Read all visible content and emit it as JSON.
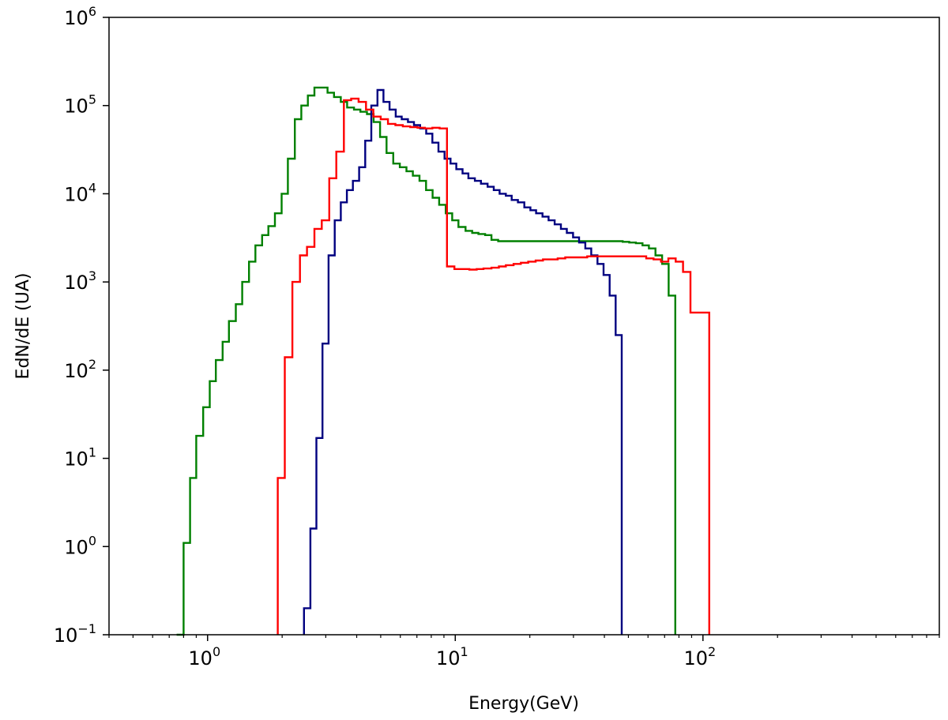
{
  "chart_data": {
    "type": "line",
    "xlabel": "Energy(GeV)",
    "ylabel": "EdN/dE (UA)",
    "xscale": "log",
    "yscale": "log",
    "xlim": [
      0.4,
      900
    ],
    "ylim": [
      0.1,
      1000000
    ],
    "grid": false,
    "x_ticks": [
      {
        "base": "10",
        "exp": "0",
        "value": 1
      },
      {
        "base": "10",
        "exp": "1",
        "value": 10
      },
      {
        "base": "10",
        "exp": "2",
        "value": 100
      }
    ],
    "y_ticks": [
      {
        "base": "10",
        "exp": "−1",
        "value": 0.1
      },
      {
        "base": "10",
        "exp": "0",
        "value": 1
      },
      {
        "base": "10",
        "exp": "1",
        "value": 10
      },
      {
        "base": "10",
        "exp": "2",
        "value": 100
      },
      {
        "base": "10",
        "exp": "3",
        "value": 1000
      },
      {
        "base": "10",
        "exp": "4",
        "value": 10000
      },
      {
        "base": "10",
        "exp": "5",
        "value": 100000
      },
      {
        "base": "10",
        "exp": "6",
        "value": 1000000
      }
    ],
    "series": [
      {
        "color": "#008000",
        "edges": [
          0.75,
          0.8,
          0.85,
          0.9,
          0.96,
          1.02,
          1.08,
          1.15,
          1.22,
          1.3,
          1.38,
          1.47,
          1.56,
          1.66,
          1.76,
          1.87,
          1.99,
          2.11,
          2.25,
          2.39,
          2.54,
          2.7,
          2.87,
          3.05,
          3.24,
          3.45,
          3.66,
          3.9,
          4.14,
          4.4,
          4.68,
          4.97,
          5.28,
          5.62,
          5.97,
          6.35,
          6.74,
          7.17,
          7.62,
          8.1,
          8.61,
          9.15,
          9.72,
          10.3,
          11.0,
          11.7,
          12.4,
          13.2,
          14.0,
          14.9,
          15.8,
          16.8,
          17.9,
          19.0,
          20.2,
          21.5,
          22.8,
          24.3,
          25.8,
          27.4,
          29.1,
          31.0,
          32.9,
          35.0,
          37.2,
          39.5,
          42.0,
          44.6,
          47.4,
          50.4,
          53.6,
          57.0,
          60.5,
          64.3,
          68.4,
          72.7,
          77.3
        ],
        "values": [
          0.1,
          1.1,
          6,
          18,
          38,
          75,
          130,
          210,
          360,
          560,
          1000,
          1700,
          2600,
          3400,
          4300,
          6000,
          10000,
          25000,
          70000,
          100000,
          130000,
          160000,
          160000,
          140000,
          125000,
          110000,
          95000,
          90000,
          85000,
          80000,
          65000,
          44000,
          29000,
          22000,
          20000,
          18000,
          16000,
          14000,
          11000,
          9000,
          7500,
          6000,
          5000,
          4200,
          3800,
          3600,
          3500,
          3400,
          3000,
          2900,
          2900,
          2900,
          2900,
          2900,
          2900,
          2900,
          2900,
          2900,
          2900,
          2900,
          2900,
          2900,
          2900,
          2900,
          2900,
          2900,
          2900,
          2900,
          2850,
          2800,
          2750,
          2600,
          2400,
          2000,
          1600,
          700
        ]
      },
      {
        "color": "#000080",
        "edges": [
          2.45,
          2.6,
          2.75,
          2.91,
          3.08,
          3.26,
          3.45,
          3.65,
          3.86,
          4.09,
          4.33,
          4.58,
          4.85,
          5.13,
          5.43,
          5.75,
          6.08,
          6.44,
          6.81,
          7.21,
          7.63,
          8.08,
          8.55,
          9.05,
          9.57,
          10.1,
          10.7,
          11.3,
          12.0,
          12.7,
          13.5,
          14.3,
          15.1,
          16.0,
          16.9,
          17.9,
          19.0,
          20.1,
          21.2,
          22.5,
          23.8,
          25.2,
          26.7,
          28.2,
          29.9,
          31.6,
          33.5,
          35.4,
          37.5,
          39.7,
          42.0,
          44.4,
          47.0
        ],
        "values": [
          0.2,
          1.6,
          17,
          200,
          2000,
          5000,
          8000,
          11000,
          14000,
          20000,
          40000,
          100000,
          150000,
          110000,
          90000,
          75000,
          70000,
          65000,
          60000,
          55000,
          48000,
          38000,
          30000,
          25000,
          22000,
          19000,
          17000,
          15000,
          14000,
          13000,
          12000,
          11000,
          10000,
          9500,
          8500,
          8000,
          7000,
          6500,
          6000,
          5500,
          5000,
          4500,
          4000,
          3600,
          3200,
          2800,
          2400,
          2000,
          1600,
          1200,
          700,
          250
        ]
      },
      {
        "color": "#ff0000",
        "edges": [
          1.92,
          2.05,
          2.2,
          2.36,
          2.52,
          2.7,
          2.89,
          3.1,
          3.31,
          3.55,
          3.8,
          4.07,
          4.36,
          4.67,
          5.0,
          5.35,
          5.73,
          6.14,
          6.58,
          7.04,
          7.54,
          8.08,
          8.65,
          9.26,
          9.92,
          10.6,
          11.4,
          12.2,
          13.0,
          14.0,
          15.0,
          16.0,
          17.2,
          18.4,
          19.7,
          21.1,
          22.6,
          24.2,
          25.9,
          27.8,
          29.7,
          31.8,
          34.1,
          36.5,
          39.1,
          41.9,
          44.9,
          48.1,
          51.5,
          55.1,
          59.0,
          63.2,
          67.7,
          72.5,
          77.6,
          83.1,
          89.0,
          95.4,
          102.1,
          106.0
        ],
        "values": [
          6,
          140,
          1000,
          2000,
          2500,
          4000,
          5000,
          15000,
          30000,
          115000,
          120000,
          110000,
          90000,
          75000,
          70000,
          62000,
          60000,
          58000,
          57000,
          56000,
          55000,
          56000,
          55000,
          1500,
          1400,
          1400,
          1380,
          1400,
          1420,
          1450,
          1500,
          1550,
          1600,
          1650,
          1700,
          1750,
          1800,
          1800,
          1850,
          1900,
          1900,
          1900,
          1950,
          1950,
          1950,
          1950,
          1950,
          1950,
          1950,
          1950,
          1850,
          1800,
          1700,
          1850,
          1700,
          1300,
          450,
          450,
          450
        ]
      }
    ]
  }
}
